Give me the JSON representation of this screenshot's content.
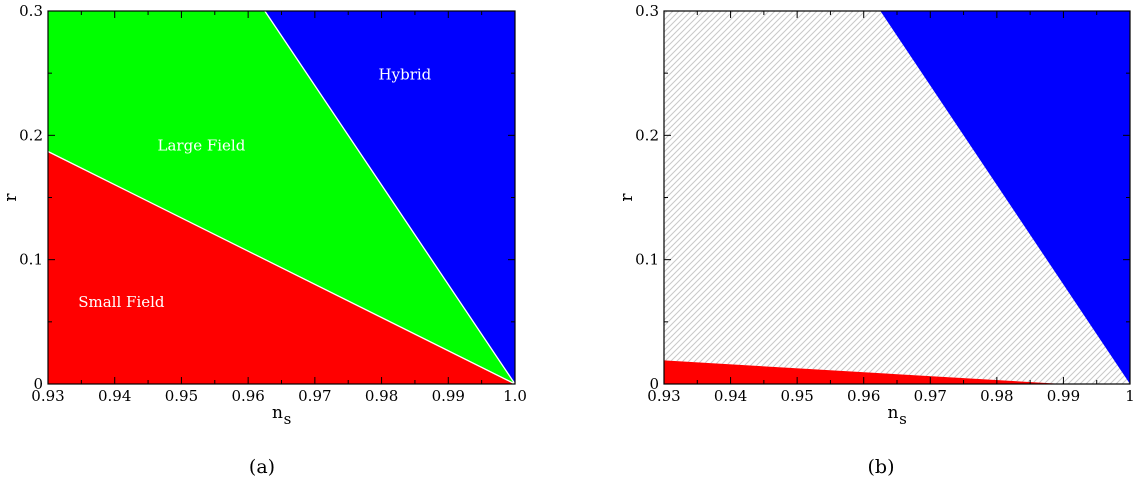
{
  "chart_data": [
    {
      "type": "area",
      "caption": "(a)",
      "xlabel": "n",
      "xlabel_sub": "s",
      "ylabel": "r",
      "xlim": [
        0.93,
        1.0
      ],
      "ylim": [
        0,
        0.3
      ],
      "x_ticks": [
        0.93,
        0.94,
        0.95,
        0.96,
        0.97,
        0.98,
        0.99,
        1.0
      ],
      "x_tick_labels": [
        "0.93",
        "0.94",
        "0.95",
        "0.96",
        "0.97",
        "0.98",
        "0.99",
        "1.0"
      ],
      "y_ticks": [
        0,
        0.1,
        0.2,
        0.3
      ],
      "y_tick_labels": [
        "0",
        "0.1",
        "0.2",
        "0.3"
      ],
      "regions": [
        {
          "name": "Small Field",
          "color": "#ff0000",
          "label_at": [
            0.941,
            0.062
          ],
          "polygon": [
            [
              0.93,
              0
            ],
            [
              1.0,
              0
            ],
            [
              0.93,
              0.187
            ]
          ]
        },
        {
          "name": "Large Field",
          "color": "#00ff00",
          "label_at": [
            0.953,
            0.188
          ],
          "polygon": [
            [
              0.93,
              0.187
            ],
            [
              1.0,
              0
            ],
            [
              0.9625,
              0.3
            ],
            [
              0.93,
              0.3
            ]
          ]
        },
        {
          "name": "Hybrid",
          "color": "#0000ff",
          "label_at": [
            0.9835,
            0.245
          ],
          "polygon": [
            [
              0.9625,
              0.3
            ],
            [
              1.0,
              0
            ],
            [
              1.0,
              0.3
            ]
          ]
        }
      ],
      "boundaries": [
        [
          [
            0.93,
            0.187
          ],
          [
            1.0,
            0
          ]
        ],
        [
          [
            0.9625,
            0.3
          ],
          [
            1.0,
            0
          ]
        ]
      ]
    },
    {
      "type": "area",
      "caption": "(b)",
      "xlabel": "n",
      "xlabel_sub": "s",
      "ylabel": "r",
      "xlim": [
        0.93,
        1.0
      ],
      "ylim": [
        0,
        0.3
      ],
      "x_ticks": [
        0.93,
        0.94,
        0.95,
        0.96,
        0.97,
        0.98,
        0.99,
        1.0
      ],
      "x_tick_labels": [
        "0.93",
        "0.94",
        "0.95",
        "0.96",
        "0.97",
        "0.98",
        "0.99",
        "1"
      ],
      "y_ticks": [
        0,
        0.1,
        0.2,
        0.3
      ],
      "y_tick_labels": [
        "0",
        "0.1",
        "0.2",
        "0.3"
      ],
      "regions": [
        {
          "name": "",
          "color": "hatch-grey",
          "polygon": [
            [
              0.93,
              0.019
            ],
            [
              0.93,
              0.3
            ],
            [
              0.9625,
              0.3
            ],
            [
              1.0,
              0
            ],
            [
              0.99,
              0
            ]
          ]
        },
        {
          "name": "",
          "color": "#ff0000",
          "polygon": [
            [
              0.93,
              0
            ],
            [
              0.99,
              0
            ],
            [
              0.93,
              0.019
            ]
          ]
        },
        {
          "name": "",
          "color": "#0000ff",
          "polygon": [
            [
              0.9625,
              0.3
            ],
            [
              1.0,
              0
            ],
            [
              1.0,
              0.3
            ]
          ]
        }
      ],
      "boundaries": []
    }
  ]
}
